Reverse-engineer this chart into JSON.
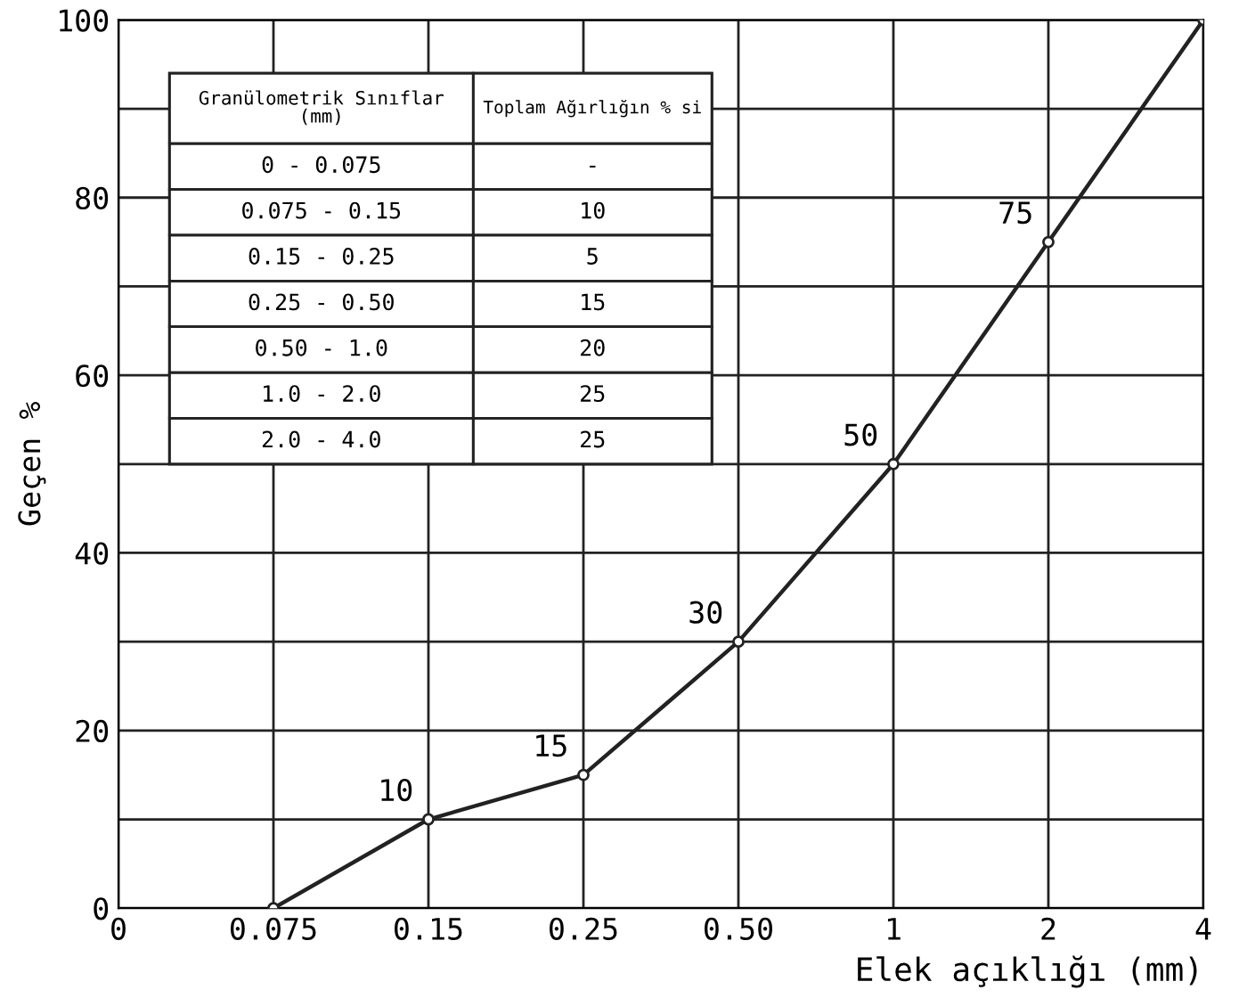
{
  "chart_data": {
    "type": "line",
    "xlabel": "Elek açıklığı (mm)",
    "ylabel": "Geçen %",
    "categories": [
      "0",
      "0.075",
      "0.15",
      "0.25",
      "0.50",
      "1",
      "2",
      "4"
    ],
    "series": [
      {
        "color": "#222222",
        "values": [
          null,
          0,
          10,
          15,
          30,
          50,
          75,
          100
        ],
        "value_labels": [
          null,
          null,
          "10",
          "15",
          "30",
          "50",
          "75",
          null
        ]
      }
    ],
    "ylim": [
      0,
      100
    ],
    "yticks": [
      0,
      {
        "value": 10,
        "label": null
      },
      20,
      {
        "value": 30,
        "label": null
      },
      40,
      {
        "value": 50,
        "label": null
      },
      60,
      {
        "value": 70,
        "label": null
      },
      80,
      {
        "value": 90,
        "label": null
      },
      100
    ],
    "grid": true,
    "marker": "circle",
    "line_style": "solid",
    "annotations": [
      "Granülometrik Sınıflar\n(mm)",
      "Toplam Ağırlığın % si",
      "0 - 0.075",
      "-",
      "0.075 - 0.15",
      "10",
      "0.15 - 0.25",
      "5",
      "0.25 - 0.50",
      "15",
      "0.50 - 1.0",
      "20",
      "1.0 - 2.0",
      "25",
      "2.0 - 4.0",
      "25"
    ]
  }
}
